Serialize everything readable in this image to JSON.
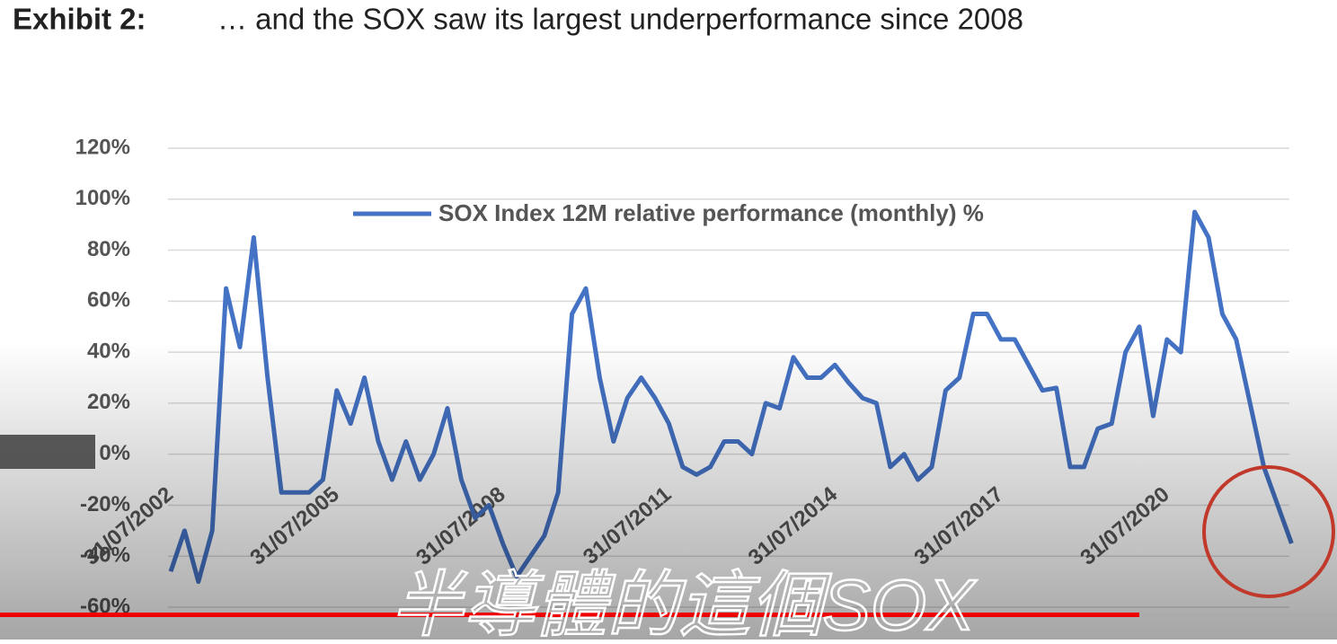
{
  "chart_data": {
    "type": "line",
    "title_label": "Exhibit 2:",
    "title": "… and the SOX saw its largest underperformance since 2008",
    "caption": "半導體的這個SOX",
    "categories": [
      "31/07/2002",
      null,
      null,
      null,
      null,
      null,
      null,
      null,
      null,
      null,
      null,
      null,
      "31/07/2005",
      null,
      null,
      null,
      null,
      null,
      null,
      null,
      null,
      null,
      null,
      null,
      "31/07/2008",
      null,
      null,
      null,
      null,
      null,
      null,
      null,
      null,
      null,
      null,
      null,
      "31/07/2011",
      null,
      null,
      null,
      null,
      null,
      null,
      null,
      null,
      null,
      null,
      null,
      "31/07/2014",
      null,
      null,
      null,
      null,
      null,
      null,
      null,
      null,
      null,
      null,
      null,
      "31/07/2017",
      null,
      null,
      null,
      null,
      null,
      null,
      null,
      null,
      null,
      null,
      null,
      "31/07/2020",
      null,
      null,
      null,
      null,
      null,
      null,
      null,
      null,
      null
    ],
    "series": [
      {
        "name": "SOX Index 12M relative performance (monthly) %",
        "color": "#4472c4",
        "values": [
          -46,
          -30,
          -50,
          -30,
          65,
          42,
          85,
          30,
          -15,
          -15,
          -15,
          -10,
          25,
          12,
          30,
          5,
          -10,
          5,
          -10,
          0,
          18,
          -10,
          -25,
          -20,
          -35,
          -48,
          -40,
          -32,
          -15,
          55,
          65,
          30,
          5,
          22,
          30,
          22,
          12,
          -5,
          -8,
          -5,
          5,
          5,
          0,
          20,
          18,
          38,
          30,
          30,
          35,
          28,
          22,
          20,
          -5,
          0,
          -10,
          -5,
          25,
          30,
          55,
          55,
          45,
          45,
          35,
          25,
          26,
          -5,
          -5,
          10,
          12,
          40,
          50,
          15,
          45,
          40,
          95,
          85,
          55,
          45,
          20,
          -5,
          -20,
          -35
        ]
      }
    ],
    "ylim": [
      -60,
      120
    ],
    "yticks": [
      {
        "value": -60,
        "label": "-60%"
      },
      {
        "value": -40,
        "label": "-40%"
      },
      {
        "value": -20,
        "label": "-20%"
      },
      {
        "value": 0,
        "label": "0%"
      },
      {
        "value": 20,
        "label": "20%"
      },
      {
        "value": 40,
        "label": "40%"
      },
      {
        "value": 60,
        "label": "60%"
      },
      {
        "value": 80,
        "label": "80%"
      },
      {
        "value": 100,
        "label": "100%"
      },
      {
        "value": 120,
        "label": "120%"
      }
    ],
    "grid": true
  }
}
